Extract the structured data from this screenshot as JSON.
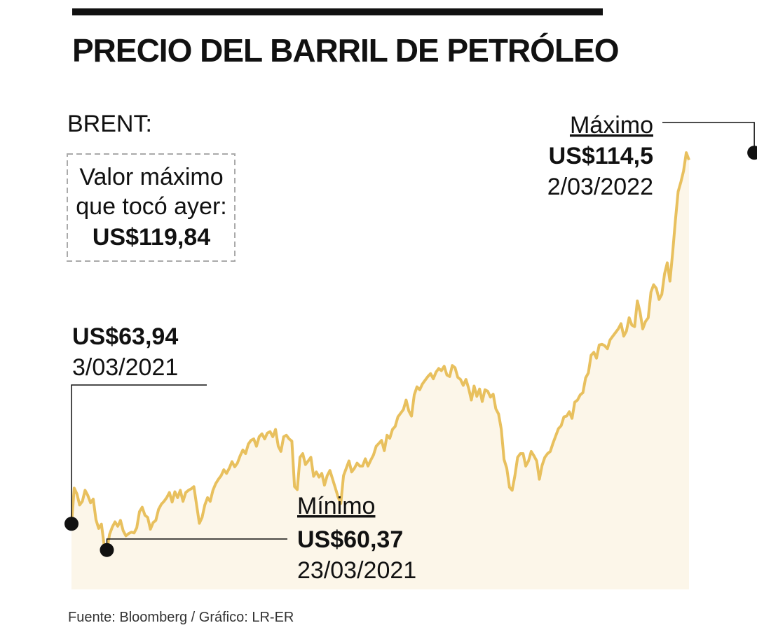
{
  "title": "PRECIO DEL BARRIL DE PETRÓLEO",
  "source": "Fuente: Bloomberg / Gráfico: LR-ER",
  "colors": {
    "line": "#E8C05E",
    "area": "#FCF6E9",
    "text": "#111111",
    "box_border": "#AAAAAA"
  },
  "chart_data": {
    "type": "area",
    "series_label": "BRENT:",
    "x_unit": "date",
    "y_unit": "US$",
    "xlim": [
      "3/03/2021",
      "3/03/2022"
    ],
    "ylim": [
      55,
      125
    ],
    "grid": false,
    "legend": "none",
    "info_box": {
      "line1": "Valor máximo",
      "line2": "que tocó ayer:",
      "value": "US$119,84"
    },
    "annotations": {
      "start": {
        "value_label": "US$63,94",
        "date_label": "3/03/2021",
        "value": 63.94,
        "index": 0
      },
      "min": {
        "title": "Mínimo",
        "value_label": "US$60,37",
        "date_label": "23/03/2021",
        "value": 60.37,
        "index": 13
      },
      "max": {
        "title": "Máximo",
        "value_label": "US$114,5",
        "date_label": "2/03/2022",
        "value": 114.5,
        "index": 251
      }
    },
    "values": [
      63.94,
      68.8,
      68.0,
      66.5,
      67.0,
      68.5,
      67.8,
      66.8,
      67.3,
      64.5,
      63.3,
      63.9,
      61.0,
      60.37,
      62.5,
      63.5,
      64.2,
      63.6,
      64.4,
      63.0,
      62.3,
      62.6,
      62.8,
      62.7,
      63.4,
      65.6,
      66.2,
      65.1,
      64.8,
      63.2,
      64.1,
      64.4,
      65.9,
      66.6,
      67.0,
      67.5,
      68.2,
      66.9,
      68.3,
      67.5,
      68.5,
      67.0,
      68.2,
      68.5,
      68.7,
      69.0,
      66.5,
      64.0,
      64.8,
      66.5,
      67.5,
      67.0,
      68.5,
      69.4,
      70.0,
      70.5,
      71.3,
      70.8,
      71.5,
      72.4,
      71.7,
      72.2,
      73.2,
      74.0,
      73.5,
      74.8,
      75.3,
      75.5,
      74.5,
      75.8,
      76.2,
      75.5,
      76.3,
      76.5,
      75.8,
      76.8,
      74.5,
      73.8,
      75.8,
      76.0,
      75.5,
      75.2,
      69.0,
      68.6,
      73.0,
      73.5,
      72.0,
      72.5,
      73.0,
      70.4,
      71.0,
      70.3,
      70.8,
      69.2,
      70.5,
      71.2,
      70.0,
      68.8,
      67.6,
      66.7,
      70.5,
      71.5,
      72.5,
      71.0,
      71.5,
      72.2,
      71.8,
      71.8,
      72.8,
      71.8,
      72.6,
      73.3,
      74.5,
      74.9,
      75.3,
      73.9,
      76.0,
      75.6,
      76.8,
      77.2,
      78.5,
      79.0,
      79.5,
      80.8,
      79.3,
      78.6,
      81.5,
      82.6,
      82.2,
      83.0,
      83.5,
      84.0,
      84.4,
      83.7,
      84.6,
      85.1,
      84.8,
      85.4,
      84.2,
      84.0,
      85.5,
      85.2,
      83.9,
      83.6,
      82.8,
      83.6,
      82.4,
      80.8,
      82.7,
      81.3,
      82.3,
      80.6,
      82.2,
      82.0,
      81.2,
      81.6,
      79.6,
      78.9,
      76.8,
      72.7,
      71.5,
      68.9,
      68.5,
      70.5,
      73.0,
      73.5,
      73.5,
      71.8,
      72.5,
      73.8,
      73.2,
      72.5,
      70.0,
      71.9,
      73.0,
      73.5,
      73.8,
      74.9,
      75.9,
      76.9,
      77.3,
      78.5,
      78.6,
      79.2,
      78.3,
      80.5,
      80.8,
      81.5,
      81.8,
      83.8,
      84.5,
      86.9,
      87.3,
      86.5,
      88.3,
      88.4,
      88.2,
      87.8,
      89.0,
      89.5,
      90.0,
      90.5,
      91.2,
      89.5,
      90.2,
      92.0,
      91.0,
      90.8,
      94.3,
      92.8,
      90.5,
      91.5,
      92.0,
      95.5,
      96.5,
      96.0,
      94.5,
      95.2,
      98.0,
      99.5,
      97.0,
      100.9,
      105.3,
      109.2,
      110.5,
      112.0,
      114.5,
      113.5
    ]
  }
}
